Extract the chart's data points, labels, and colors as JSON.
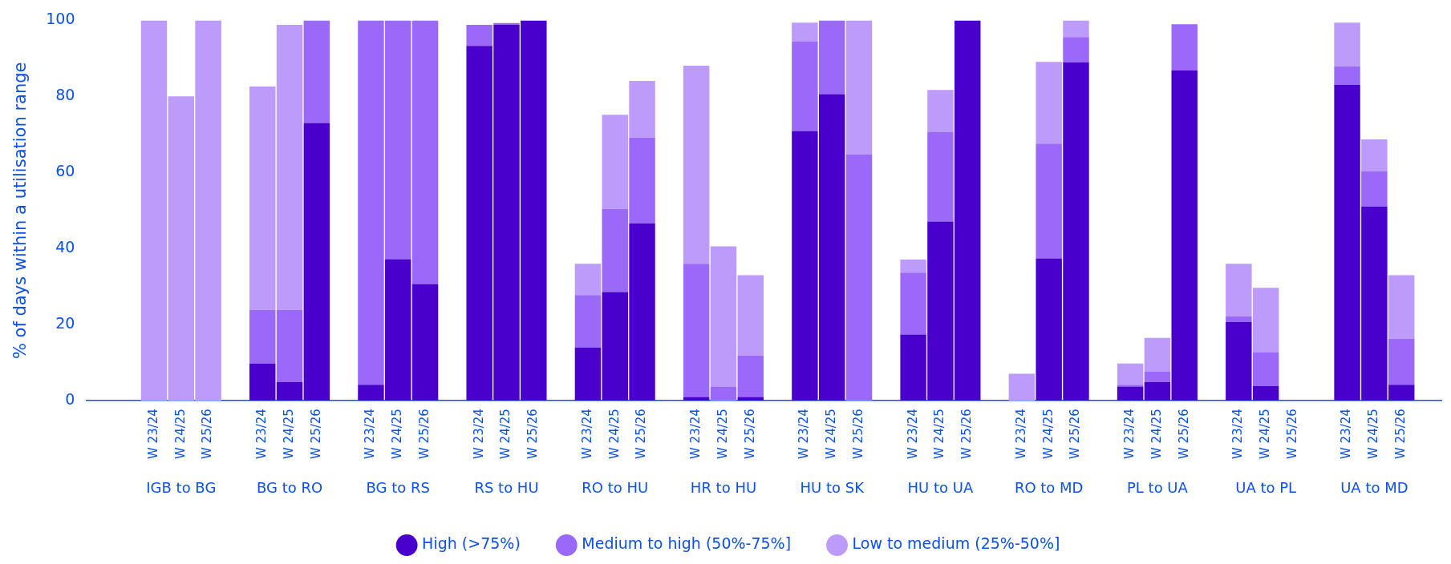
{
  "chart_data": {
    "type": "bar",
    "stacked": true,
    "ylabel": "% of days within a utilisation range",
    "categories": [
      null,
      null,
      "W 23/24",
      "W 24/25",
      "W 25/26",
      null,
      "W 23/24",
      "W 24/25",
      "W 25/26",
      null,
      "W 23/24",
      "W 24/25",
      "W 25/26",
      null,
      "W 23/24",
      "W 24/25",
      "W 25/26",
      null,
      "W 23/24",
      "W 24/25",
      "W 25/26",
      null,
      "W 23/24",
      "W 24/25",
      "W 25/26",
      null,
      "W 23/24",
      "W 24/25",
      "W 25/26",
      null,
      "W 23/24",
      "W 24/25",
      "W 25/26",
      null,
      "W 23/24",
      "W 24/25",
      "W 25/26",
      null,
      "W 23/24",
      "W 24/25",
      "W 25/26",
      null,
      "W 23/24",
      "W 24/25",
      "W 25/26",
      null,
      "W 23/24",
      "W 24/25",
      "W 25/26",
      null
    ],
    "series": [
      {
        "name": "High (>75%)",
        "color": "#4a00cc",
        "values": [
          null,
          null,
          0,
          0,
          0,
          null,
          9.8,
          4.9,
          73,
          null,
          4.2,
          37.2,
          30.7,
          null,
          93.3,
          98.8,
          100,
          null,
          14,
          28.6,
          46.6,
          null,
          1,
          0,
          1,
          null,
          70.9,
          80.6,
          0,
          null,
          17.4,
          47.1,
          100,
          null,
          0,
          37.4,
          88.9,
          null,
          3.7,
          4.9,
          86.8,
          null,
          20.7,
          3.9,
          0,
          null,
          83,
          51,
          4.2,
          null
        ]
      },
      {
        "name": "Medium to high (50%-75%]",
        "color": "#9b69f9",
        "values": [
          null,
          null,
          0,
          0,
          0,
          null,
          14.1,
          19,
          27,
          null,
          95.8,
          62.8,
          69.3,
          null,
          5.5,
          0.5,
          0,
          null,
          13.8,
          21.8,
          22.6,
          null,
          35,
          3.7,
          10.9,
          null,
          23.6,
          19.4,
          64.7,
          null,
          16.3,
          23.6,
          0,
          null,
          0,
          30.2,
          6.7,
          null,
          0.5,
          2.8,
          12.2,
          null,
          1.5,
          8.8,
          0,
          null,
          4.9,
          9.3,
          12.1,
          null
        ]
      },
      {
        "name": "Low to medium (25%-50%]",
        "color": "#bc9bfa",
        "values": [
          null,
          null,
          100,
          80,
          100,
          null,
          58.7,
          74.9,
          0,
          null,
          0,
          0,
          0,
          null,
          0,
          0,
          0,
          null,
          8.2,
          24.8,
          14.9,
          null,
          52.1,
          36.9,
          21.1,
          null,
          4.9,
          0,
          35.3,
          null,
          3.4,
          11,
          0,
          null,
          7.1,
          21.5,
          4.4,
          null,
          5.6,
          8.8,
          0,
          null,
          13.8,
          17,
          0,
          null,
          11.5,
          8.4,
          16.7,
          null
        ]
      }
    ],
    "annotations": [
      "IGB to BG",
      "BG to RO",
      "BG to RS",
      "RS to HU",
      "RO to HU",
      "HR to HU",
      "HU to SK",
      "HU to UA",
      "RO to MD",
      "PL to UA",
      "UA to PL",
      "UA to MD"
    ],
    "ylim": [
      0,
      100
    ],
    "yticks": [
      0,
      20,
      40,
      60,
      80,
      100
    ],
    "grid": false,
    "legend": "bottom"
  }
}
